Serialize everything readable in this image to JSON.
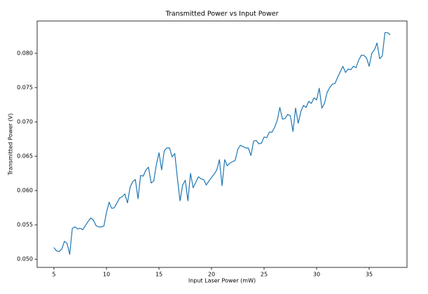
{
  "chart_data": {
    "type": "line",
    "title": "Transmitted Power vs Input Power",
    "x_label": "Input Laser Power (mW)",
    "y_label": "Transmitted Power (V)",
    "x": [
      5,
      5.25,
      5.5,
      5.75,
      6,
      6.25,
      6.5,
      6.75,
      7,
      7.25,
      7.5,
      7.75,
      8,
      8.25,
      8.5,
      8.75,
      9,
      9.25,
      9.5,
      9.75,
      10,
      10.25,
      10.5,
      10.75,
      11,
      11.25,
      11.5,
      11.75,
      12,
      12.25,
      12.5,
      12.75,
      13,
      13.25,
      13.5,
      13.75,
      14,
      14.25,
      14.5,
      14.75,
      15,
      15.25,
      15.5,
      15.75,
      16,
      16.25,
      16.5,
      16.75,
      17,
      17.25,
      17.5,
      17.75,
      18,
      18.25,
      18.5,
      18.75,
      19,
      19.25,
      19.5,
      19.75,
      20,
      20.25,
      20.5,
      20.75,
      21,
      21.25,
      21.5,
      21.75,
      22,
      22.25,
      22.5,
      22.75,
      23,
      23.25,
      23.5,
      23.75,
      24,
      24.25,
      24.5,
      24.75,
      25,
      25.25,
      25.5,
      25.75,
      26,
      26.25,
      26.5,
      26.75,
      27,
      27.25,
      27.5,
      27.75,
      28,
      28.25,
      28.5,
      28.75,
      29,
      29.25,
      29.5,
      29.75,
      30,
      30.25,
      30.5,
      30.75,
      31,
      31.25,
      31.5,
      31.75,
      32,
      32.25,
      32.5,
      32.75,
      33,
      33.25,
      33.5,
      33.75,
      34,
      34.25,
      34.5,
      34.75,
      35,
      35.25,
      35.5,
      35.75,
      36,
      36.25,
      36.5,
      36.75,
      37
    ],
    "series": [
      {
        "name": "Transmitted Power",
        "color": "#1f77b4",
        "values": [
          0.0517,
          0.0512,
          0.0511,
          0.0515,
          0.0526,
          0.0523,
          0.0507,
          0.0545,
          0.0547,
          0.0544,
          0.0545,
          0.0543,
          0.0549,
          0.0555,
          0.056,
          0.0557,
          0.0549,
          0.0547,
          0.0547,
          0.0548,
          0.0568,
          0.0583,
          0.0574,
          0.0575,
          0.0582,
          0.0589,
          0.0591,
          0.0595,
          0.0582,
          0.0605,
          0.0613,
          0.0616,
          0.0588,
          0.0622,
          0.0621,
          0.063,
          0.0634,
          0.0611,
          0.0614,
          0.0638,
          0.0655,
          0.063,
          0.0658,
          0.0662,
          0.0662,
          0.0649,
          0.0654,
          0.0618,
          0.0585,
          0.0608,
          0.0615,
          0.0585,
          0.0625,
          0.0604,
          0.0612,
          0.062,
          0.0617,
          0.0616,
          0.0608,
          0.0614,
          0.0619,
          0.0624,
          0.063,
          0.0645,
          0.0607,
          0.0645,
          0.0636,
          0.064,
          0.0642,
          0.0644,
          0.066,
          0.0666,
          0.0664,
          0.0662,
          0.0662,
          0.0651,
          0.0672,
          0.0673,
          0.0668,
          0.0669,
          0.0678,
          0.0677,
          0.0685,
          0.0685,
          0.0692,
          0.0702,
          0.0721,
          0.0704,
          0.0705,
          0.0711,
          0.0709,
          0.0686,
          0.072,
          0.0698,
          0.0715,
          0.0724,
          0.0721,
          0.073,
          0.0727,
          0.0735,
          0.0732,
          0.0749,
          0.072,
          0.0727,
          0.0743,
          0.075,
          0.0755,
          0.0756,
          0.0765,
          0.0773,
          0.0781,
          0.0772,
          0.0777,
          0.0776,
          0.0781,
          0.0779,
          0.079,
          0.0797,
          0.0797,
          0.0793,
          0.0781,
          0.08,
          0.0805,
          0.0815,
          0.0792,
          0.0796,
          0.083,
          0.083,
          0.0827
        ]
      }
    ],
    "xlim": [
      3.4,
      38.6
    ],
    "ylim": [
      0.0488,
      0.0847
    ],
    "xticks": [
      5,
      10,
      15,
      20,
      25,
      30,
      35
    ],
    "yticks": [
      {
        "value": 0.05,
        "label": "0.050"
      },
      0.055,
      {
        "value": 0.06,
        "label": "0.060"
      },
      0.065,
      {
        "value": 0.07,
        "label": "0.070"
      },
      0.075,
      {
        "value": 0.08,
        "label": "0.080"
      }
    ],
    "grid": false
  }
}
